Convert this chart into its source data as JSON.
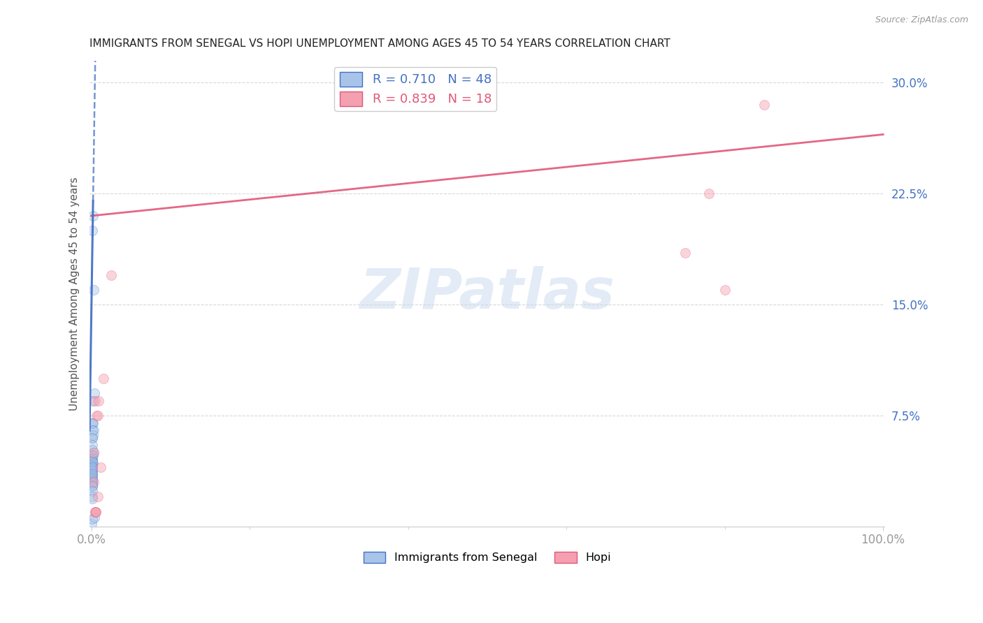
{
  "title": "IMMIGRANTS FROM SENEGAL VS HOPI UNEMPLOYMENT AMONG AGES 45 TO 54 YEARS CORRELATION CHART",
  "source": "Source: ZipAtlas.com",
  "ylabel": "Unemployment Among Ages 45 to 54 years",
  "legend_entries": [
    "Immigrants from Senegal",
    "Hopi"
  ],
  "legend_R": [
    0.71,
    0.839
  ],
  "legend_N": [
    48,
    18
  ],
  "senegal_x": [
    0.001,
    0.002,
    0.003,
    0.001,
    0.002,
    0.004,
    0.001,
    0.001,
    0.002,
    0.003,
    0.001,
    0.002,
    0.001,
    0.001,
    0.003,
    0.001,
    0.001,
    0.002,
    0.001,
    0.001,
    0.001,
    0.001,
    0.002,
    0.001,
    0.001,
    0.001,
    0.001,
    0.001,
    0.001,
    0.001,
    0.001,
    0.001,
    0.001,
    0.001,
    0.001,
    0.001,
    0.001,
    0.001,
    0.001,
    0.0,
    0.001,
    0.001,
    0.001,
    0.001,
    0.001,
    0.001,
    0.004,
    0.001
  ],
  "senegal_y": [
    0.2,
    0.21,
    0.16,
    0.07,
    0.085,
    0.09,
    0.07,
    0.06,
    0.07,
    0.065,
    0.065,
    0.062,
    0.06,
    0.055,
    0.05,
    0.048,
    0.052,
    0.048,
    0.046,
    0.045,
    0.044,
    0.044,
    0.043,
    0.042,
    0.041,
    0.04,
    0.04,
    0.039,
    0.038,
    0.037,
    0.036,
    0.036,
    0.035,
    0.034,
    0.033,
    0.032,
    0.031,
    0.03,
    0.029,
    0.002,
    0.028,
    0.028,
    0.027,
    0.024,
    0.02,
    0.019,
    0.006,
    0.005
  ],
  "hopi_x": [
    0.005,
    0.007,
    0.008,
    0.009,
    0.015,
    0.025,
    0.003,
    0.005,
    0.006,
    0.008,
    0.012,
    0.003,
    0.75,
    0.8,
    0.85,
    0.78,
    0.005,
    0.006
  ],
  "hopi_y": [
    0.085,
    0.075,
    0.075,
    0.085,
    0.1,
    0.17,
    0.03,
    0.01,
    0.01,
    0.02,
    0.04,
    0.05,
    0.185,
    0.16,
    0.285,
    0.225,
    0.01,
    0.01
  ],
  "senegal_color": "#a8c4e8",
  "hopi_color": "#f4a0b0",
  "senegal_line_color": "#4472c4",
  "hopi_line_color": "#e05878",
  "watermark": "ZIPatlas",
  "ylim": [
    0.0,
    0.315
  ],
  "xlim": [
    -0.002,
    1.002
  ],
  "yticks": [
    0.075,
    0.15,
    0.225,
    0.3
  ],
  "xticks": [
    0.0,
    0.2,
    0.4,
    0.6,
    0.8,
    1.0
  ],
  "background": "#ffffff",
  "grid_color": "#d8d8d8",
  "tick_color": "#4472c4",
  "title_fontsize": 11,
  "axis_label_fontsize": 11,
  "tick_fontsize": 12,
  "legend_fontsize": 13,
  "marker_size": 100,
  "marker_alpha": 0.45,
  "hopi_trend_start_x": 0.0,
  "hopi_trend_end_x": 1.0,
  "hopi_trend_start_y": 0.21,
  "hopi_trend_end_y": 0.265
}
